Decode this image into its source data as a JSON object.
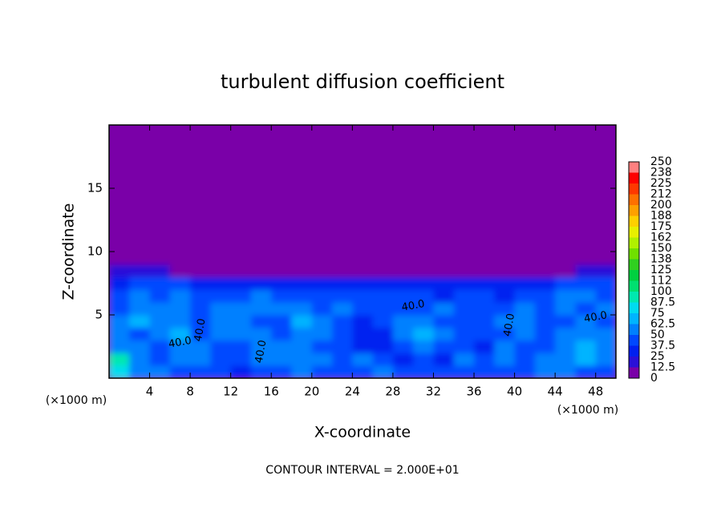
{
  "chart_data": {
    "type": "heatmap",
    "title": "turbulent diffusion coefficient",
    "x_label": "X-coordinate",
    "y_label": "Z-coordinate",
    "x_unit": "(×1000 m)",
    "y_unit": "(×1000 m)",
    "annotation": "CONTOUR INTERVAL = 2.000E+01",
    "xlim": [
      0,
      50
    ],
    "ylim": [
      0,
      20
    ],
    "xticks": [
      4,
      8,
      12,
      16,
      20,
      24,
      28,
      32,
      36,
      40,
      44,
      48
    ],
    "yticks": [
      5,
      10,
      15
    ],
    "x": [
      1,
      3,
      5,
      7,
      9,
      11,
      13,
      15,
      17,
      19,
      21,
      23,
      25,
      27,
      29,
      31,
      33,
      35,
      37,
      39,
      41,
      43,
      45,
      47,
      49
    ],
    "y": [
      0.5,
      1.5,
      2.5,
      3.5,
      4.5,
      5.5,
      6.5,
      7.5,
      8.5,
      9.5
    ],
    "z": [
      [
        75,
        55,
        50,
        45,
        40,
        45,
        35,
        40,
        45,
        55,
        45,
        40,
        45,
        50,
        40,
        45,
        40,
        45,
        45,
        40,
        45,
        50,
        55,
        40,
        45
      ],
      [
        90,
        60,
        45,
        50,
        55,
        45,
        40,
        50,
        55,
        60,
        55,
        45,
        50,
        45,
        35,
        40,
        35,
        50,
        45,
        50,
        45,
        55,
        50,
        65,
        55
      ],
      [
        60,
        50,
        45,
        55,
        50,
        40,
        45,
        55,
        60,
        55,
        45,
        40,
        30,
        25,
        45,
        60,
        40,
        45,
        35,
        50,
        45,
        40,
        60,
        70,
        60
      ],
      [
        50,
        45,
        60,
        65,
        45,
        50,
        55,
        50,
        45,
        60,
        50,
        40,
        25,
        30,
        55,
        65,
        50,
        40,
        45,
        45,
        55,
        40,
        50,
        60,
        55
      ],
      [
        60,
        65,
        55,
        50,
        40,
        55,
        60,
        45,
        40,
        65,
        50,
        45,
        35,
        40,
        60,
        50,
        45,
        45,
        40,
        50,
        60,
        45,
        45,
        50,
        45
      ],
      [
        45,
        55,
        50,
        60,
        45,
        50,
        50,
        55,
        50,
        55,
        45,
        50,
        40,
        45,
        45,
        40,
        50,
        45,
        40,
        45,
        50,
        40,
        55,
        45,
        50
      ],
      [
        40,
        50,
        45,
        55,
        40,
        40,
        45,
        50,
        45,
        40,
        45,
        40,
        45,
        40,
        45,
        40,
        35,
        45,
        40,
        35,
        45,
        40,
        50,
        55,
        45
      ],
      [
        35,
        40,
        45,
        45,
        25,
        30,
        30,
        35,
        30,
        25,
        30,
        30,
        35,
        30,
        30,
        35,
        30,
        30,
        25,
        30,
        30,
        30,
        40,
        45,
        40
      ],
      [
        15,
        15,
        20,
        10,
        0,
        0,
        0,
        0,
        0,
        0,
        0,
        0,
        0,
        0,
        0,
        0,
        0,
        0,
        0,
        0,
        0,
        0,
        5,
        15,
        15
      ],
      [
        0,
        0,
        0,
        0,
        0,
        0,
        0,
        0,
        0,
        0,
        0,
        0,
        0,
        0,
        0,
        0,
        0,
        0,
        0,
        0,
        0,
        0,
        0,
        0,
        0
      ]
    ],
    "levels": [
      0,
      12.5,
      25,
      37.5,
      50,
      62.5,
      75,
      87.5,
      100,
      112,
      125,
      138,
      150,
      162,
      175,
      188,
      200,
      212,
      225,
      238,
      250
    ],
    "colors": [
      "#7a00a8",
      "#2a10d8",
      "#0020f0",
      "#0048ff",
      "#0080ff",
      "#00b4ff",
      "#00dcf0",
      "#00e8b0",
      "#00e070",
      "#00d040",
      "#30d020",
      "#70e000",
      "#b0f000",
      "#e8f000",
      "#ffd000",
      "#ffa000",
      "#ff7000",
      "#ff3800",
      "#ff0000",
      "#ff8080"
    ],
    "contour_labels": [
      {
        "x": 9,
        "y": 3.8,
        "label": "40.0"
      },
      {
        "x": 7,
        "y": 2.8,
        "label": "40.0"
      },
      {
        "x": 15,
        "y": 2.1,
        "label": "40.0"
      },
      {
        "x": 30,
        "y": 5.7,
        "label": "40.0"
      },
      {
        "x": 39.5,
        "y": 4.2,
        "label": "40.0"
      },
      {
        "x": 48,
        "y": 4.8,
        "label": "40.0"
      }
    ]
  }
}
